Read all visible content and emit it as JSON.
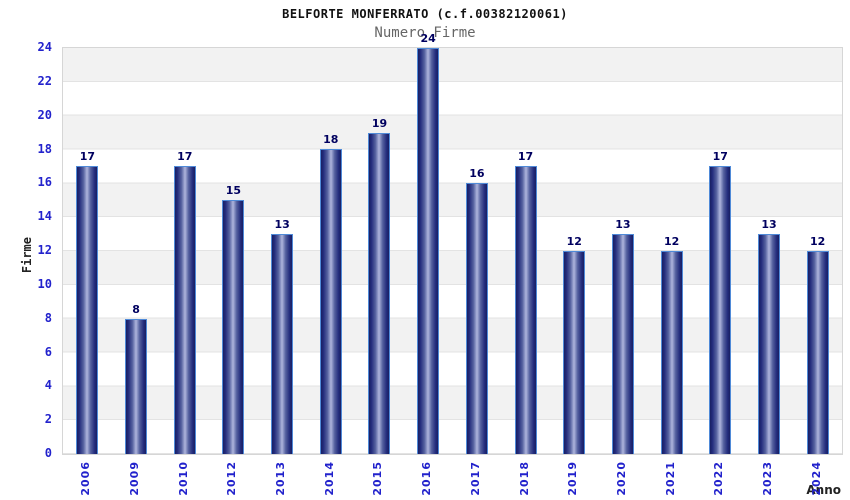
{
  "header": {
    "title": "BELFORTE MONFERRATO (c.f.00382120061)",
    "subtitle": "Numero Firme"
  },
  "chart_data": {
    "type": "bar",
    "title": "BELFORTE MONFERRATO (c.f.00382120061)",
    "subtitle": "Numero Firme",
    "xlabel": "Anno",
    "ylabel": "Firme",
    "categories": [
      "2006",
      "2009",
      "2010",
      "2012",
      "2013",
      "2014",
      "2015",
      "2016",
      "2017",
      "2018",
      "2019",
      "2020",
      "2021",
      "2022",
      "2023",
      "2024"
    ],
    "values": [
      17,
      8,
      17,
      15,
      13,
      18,
      19,
      24,
      16,
      17,
      12,
      13,
      12,
      17,
      13,
      12
    ],
    "ylim": [
      0,
      24
    ],
    "ytick_step": 2,
    "grid": true,
    "band_stripes": true,
    "legend_position": "none"
  },
  "colors": {
    "bar_edge_dark": "#191f63",
    "bar_center_light": "#aeb5dd",
    "bar_border": "#4f8ad8",
    "tick_label": "#2222cc",
    "value_label": "#00005f",
    "band_gray": "#f2f2f2",
    "band_white": "#ffffff",
    "grid_line": "#e3e3e3",
    "plot_border": "#d6d6d6",
    "title_color": "#111111",
    "subtitle_color": "#666666",
    "axis_title_color": "#222222"
  }
}
